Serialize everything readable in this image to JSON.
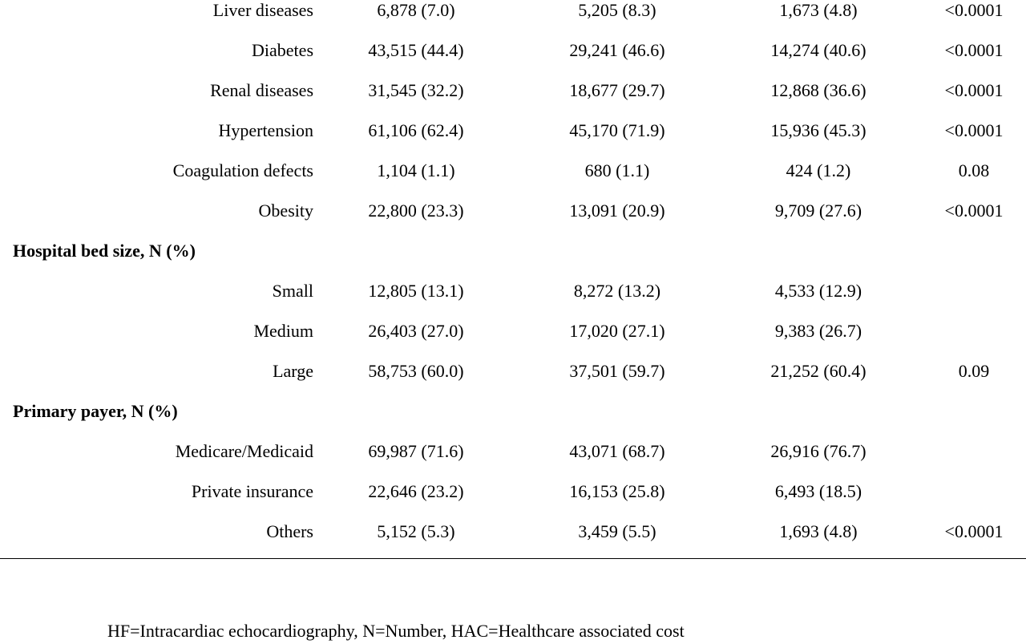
{
  "rows": [
    {
      "type": "data",
      "label": "Liver diseases",
      "c1": "6,878 (7.0)",
      "c2": "5,205 (8.3)",
      "c3": "1,673 (4.8)",
      "p": "<0.0001"
    },
    {
      "type": "data",
      "label": "Diabetes",
      "c1": "43,515 (44.4)",
      "c2": "29,241 (46.6)",
      "c3": "14,274 (40.6)",
      "p": "<0.0001"
    },
    {
      "type": "data",
      "label": "Renal diseases",
      "c1": "31,545 (32.2)",
      "c2": "18,677 (29.7)",
      "c3": "12,868 (36.6)",
      "p": "<0.0001"
    },
    {
      "type": "data",
      "label": "Hypertension",
      "c1": "61,106 (62.4)",
      "c2": "45,170 (71.9)",
      "c3": "15,936 (45.3)",
      "p": "<0.0001"
    },
    {
      "type": "data",
      "label": "Coagulation defects",
      "c1": "1,104 (1.1)",
      "c2": "680 (1.1)",
      "c3": "424 (1.2)",
      "p": "0.08"
    },
    {
      "type": "data",
      "label": "Obesity",
      "c1": "22,800 (23.3)",
      "c2": "13,091 (20.9)",
      "c3": "9,709 (27.6)",
      "p": "<0.0001"
    },
    {
      "type": "section",
      "label": "Hospital bed size, N (%)"
    },
    {
      "type": "data",
      "label": "Small",
      "c1": "12,805 (13.1)",
      "c2": "8,272 (13.2)",
      "c3": "4,533 (12.9)",
      "p": ""
    },
    {
      "type": "data",
      "label": "Medium",
      "c1": "26,403 (27.0)",
      "c2": "17,020 (27.1)",
      "c3": "9,383 (26.7)",
      "p": ""
    },
    {
      "type": "data",
      "label": "Large",
      "c1": "58,753 (60.0)",
      "c2": "37,501 (59.7)",
      "c3": "21,252 (60.4)",
      "p": "0.09"
    },
    {
      "type": "section",
      "label": "Primary payer, N (%)"
    },
    {
      "type": "data",
      "label": "Medicare/Medicaid",
      "c1": "69,987 (71.6)",
      "c2": "43,071 (68.7)",
      "c3": "26,916 (76.7)",
      "p": ""
    },
    {
      "type": "data",
      "label": "Private insurance",
      "c1": "22,646 (23.2)",
      "c2": "16,153 (25.8)",
      "c3": "6,493 (18.5)",
      "p": ""
    },
    {
      "type": "data",
      "label": "Others",
      "c1": "5,152 (5.3)",
      "c2": "3,459 (5.5)",
      "c3": "1,693 (4.8)",
      "p": "<0.0001"
    }
  ],
  "footnote": "HF=Intracardiac echocardiography, N=Number, HAC=Healthcare associated cost"
}
